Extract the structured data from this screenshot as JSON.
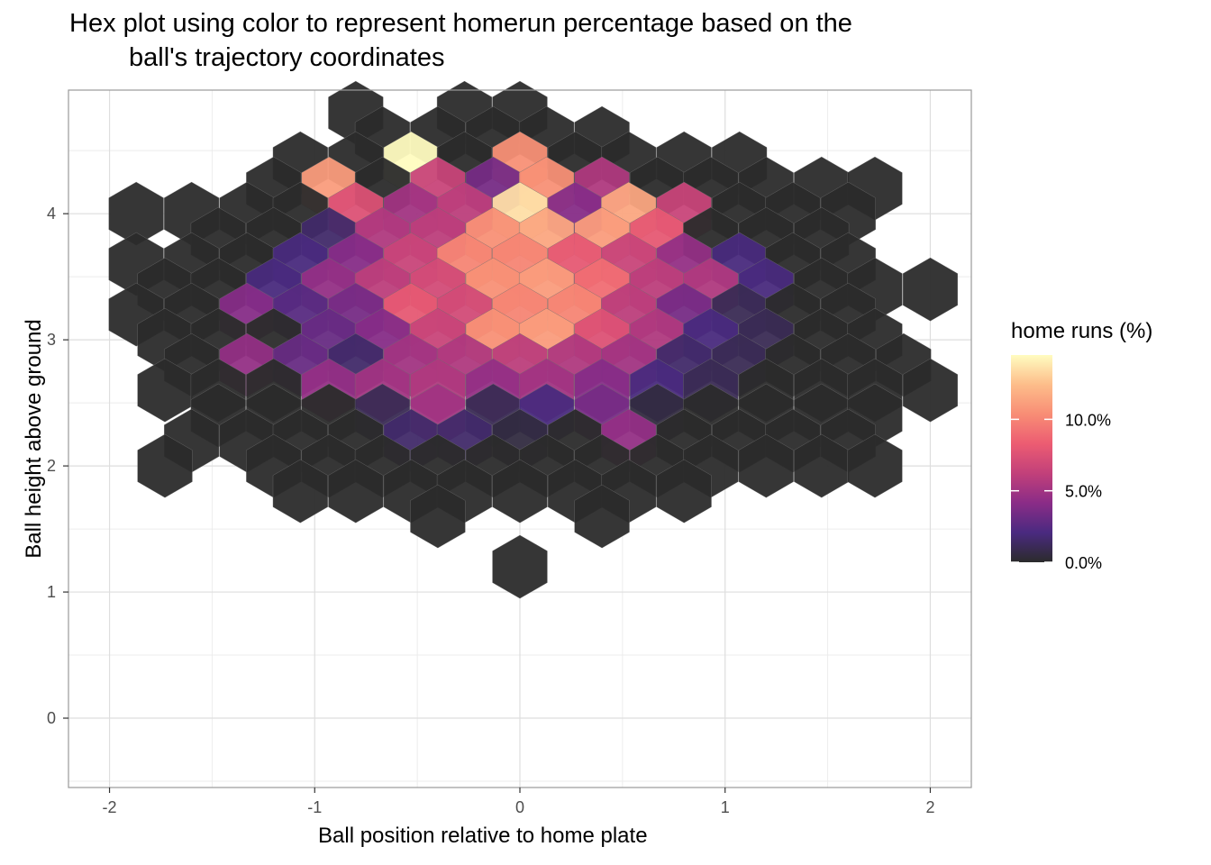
{
  "chart_data": {
    "type": "heatmap",
    "subtype": "hexbin",
    "title": "Hex plot using color to represent homerun percentage based on the",
    "title_line2": "ball's trajectory coordinates",
    "xlabel": "Ball position relative to home plate",
    "ylabel": "Ball height above ground",
    "xlim": [
      -2.2,
      2.2
    ],
    "ylim": [
      -0.55,
      4.98
    ],
    "xticks": [
      -2,
      -1,
      0,
      1,
      2
    ],
    "xtick_labels": [
      "-2",
      "-1",
      "0",
      "1",
      "2"
    ],
    "yticks": [
      0,
      1,
      2,
      3,
      4
    ],
    "ytick_labels": [
      "0",
      "1",
      "2",
      "3",
      "4"
    ],
    "grid": true,
    "hex_x_spacing": 0.2667,
    "hex_y_spacing": 0.2,
    "legend": {
      "title": "home runs (%)",
      "placement": "right",
      "ticks": [
        0,
        5,
        10
      ],
      "tick_labels": [
        "0.0%",
        "5.0%",
        "10.0%"
      ],
      "max": 14.5,
      "gradient": [
        "#2b2b2b",
        "#4a2a80",
        "#8a2c87",
        "#c2407a",
        "#ec5c72",
        "#f88d75",
        "#fdbd8a",
        "#fffcc0"
      ]
    },
    "cells": [
      {
        "x": -0.8,
        "y": 4.8,
        "v": 0
      },
      {
        "x": -0.27,
        "y": 4.8,
        "v": 0
      },
      {
        "x": 0,
        "y": 4.8,
        "v": 0
      },
      {
        "x": -0.67,
        "y": 4.6,
        "v": 0
      },
      {
        "x": -0.4,
        "y": 4.6,
        "v": 0
      },
      {
        "x": -0.13,
        "y": 4.6,
        "v": 0
      },
      {
        "x": 0.13,
        "y": 4.6,
        "v": 0
      },
      {
        "x": 0.4,
        "y": 4.6,
        "v": 0
      },
      {
        "x": -1.07,
        "y": 4.4,
        "v": 0
      },
      {
        "x": -0.8,
        "y": 4.4,
        "v": 0
      },
      {
        "x": -0.53,
        "y": 4.4,
        "v": 14.5
      },
      {
        "x": -0.27,
        "y": 4.4,
        "v": 0
      },
      {
        "x": 0,
        "y": 4.4,
        "v": 10.5
      },
      {
        "x": 0.27,
        "y": 4.4,
        "v": 0
      },
      {
        "x": 0.53,
        "y": 4.4,
        "v": 0
      },
      {
        "x": 0.8,
        "y": 4.4,
        "v": 0
      },
      {
        "x": 1.07,
        "y": 4.4,
        "v": 0
      },
      {
        "x": -1.2,
        "y": 4.2,
        "v": 0
      },
      {
        "x": -0.93,
        "y": 4.2,
        "v": 11
      },
      {
        "x": -0.67,
        "y": 4.2,
        "v": 0
      },
      {
        "x": -0.4,
        "y": 4.2,
        "v": 6.5
      },
      {
        "x": -0.13,
        "y": 4.2,
        "v": 3.5
      },
      {
        "x": 0.13,
        "y": 4.2,
        "v": 10.5
      },
      {
        "x": 0.4,
        "y": 4.2,
        "v": 5.5
      },
      {
        "x": 0.67,
        "y": 4.2,
        "v": 0
      },
      {
        "x": 0.93,
        "y": 4.2,
        "v": 0
      },
      {
        "x": 1.2,
        "y": 4.2,
        "v": 0
      },
      {
        "x": 1.47,
        "y": 4.2,
        "v": 0
      },
      {
        "x": 1.73,
        "y": 4.2,
        "v": 0
      },
      {
        "x": -1.87,
        "y": 4.0,
        "v": 0
      },
      {
        "x": -1.6,
        "y": 4.0,
        "v": 0
      },
      {
        "x": -1.33,
        "y": 4.0,
        "v": 0
      },
      {
        "x": -1.07,
        "y": 4.0,
        "v": 0
      },
      {
        "x": -0.8,
        "y": 4.0,
        "v": 7.5
      },
      {
        "x": -0.53,
        "y": 4.0,
        "v": 5
      },
      {
        "x": -0.27,
        "y": 4.0,
        "v": 6
      },
      {
        "x": 0,
        "y": 4.0,
        "v": 13.5
      },
      {
        "x": 0.27,
        "y": 4.0,
        "v": 4
      },
      {
        "x": 0.53,
        "y": 4.0,
        "v": 11.5
      },
      {
        "x": 0.8,
        "y": 4.0,
        "v": 6.5
      },
      {
        "x": 1.07,
        "y": 4.0,
        "v": 0
      },
      {
        "x": 1.33,
        "y": 4.0,
        "v": 0
      },
      {
        "x": 1.6,
        "y": 4.0,
        "v": 0
      },
      {
        "x": -1.47,
        "y": 3.8,
        "v": 0
      },
      {
        "x": -1.2,
        "y": 3.8,
        "v": 0
      },
      {
        "x": -0.93,
        "y": 3.8,
        "v": 1.5
      },
      {
        "x": -0.67,
        "y": 3.8,
        "v": 5.5
      },
      {
        "x": -0.4,
        "y": 3.8,
        "v": 6
      },
      {
        "x": -0.13,
        "y": 3.8,
        "v": 10.5
      },
      {
        "x": 0.13,
        "y": 3.8,
        "v": 11.5
      },
      {
        "x": 0.4,
        "y": 3.8,
        "v": 11
      },
      {
        "x": 0.67,
        "y": 3.8,
        "v": 8
      },
      {
        "x": 0.93,
        "y": 3.8,
        "v": 0
      },
      {
        "x": 1.2,
        "y": 3.8,
        "v": 0
      },
      {
        "x": 1.47,
        "y": 3.8,
        "v": 0
      },
      {
        "x": -1.87,
        "y": 3.6,
        "v": 0
      },
      {
        "x": -1.6,
        "y": 3.6,
        "v": 0
      },
      {
        "x": -1.33,
        "y": 3.6,
        "v": 0
      },
      {
        "x": -1.07,
        "y": 3.6,
        "v": 2
      },
      {
        "x": -0.8,
        "y": 3.6,
        "v": 4
      },
      {
        "x": -0.53,
        "y": 3.6,
        "v": 6.5
      },
      {
        "x": -0.27,
        "y": 3.6,
        "v": 10
      },
      {
        "x": 0,
        "y": 3.6,
        "v": 10
      },
      {
        "x": 0.27,
        "y": 3.6,
        "v": 8
      },
      {
        "x": 0.53,
        "y": 3.6,
        "v": 6.5
      },
      {
        "x": 0.8,
        "y": 3.6,
        "v": 4.5
      },
      {
        "x": 1.07,
        "y": 3.6,
        "v": 2
      },
      {
        "x": 1.33,
        "y": 3.6,
        "v": 0
      },
      {
        "x": 1.6,
        "y": 3.6,
        "v": 0
      },
      {
        "x": -1.73,
        "y": 3.4,
        "v": 0
      },
      {
        "x": -1.47,
        "y": 3.4,
        "v": 0
      },
      {
        "x": -1.2,
        "y": 3.4,
        "v": 2
      },
      {
        "x": -0.93,
        "y": 3.4,
        "v": 4.5
      },
      {
        "x": -0.67,
        "y": 3.4,
        "v": 6
      },
      {
        "x": -0.4,
        "y": 3.4,
        "v": 7
      },
      {
        "x": -0.13,
        "y": 3.4,
        "v": 10.5
      },
      {
        "x": 0.13,
        "y": 3.4,
        "v": 11
      },
      {
        "x": 0.4,
        "y": 3.4,
        "v": 9
      },
      {
        "x": 0.67,
        "y": 3.4,
        "v": 6
      },
      {
        "x": 0.93,
        "y": 3.4,
        "v": 5.5
      },
      {
        "x": 1.2,
        "y": 3.4,
        "v": 2
      },
      {
        "x": 1.47,
        "y": 3.4,
        "v": 0
      },
      {
        "x": 1.73,
        "y": 3.4,
        "v": 0
      },
      {
        "x": 2.0,
        "y": 3.4,
        "v": 0
      },
      {
        "x": -1.87,
        "y": 3.2,
        "v": 0
      },
      {
        "x": -1.6,
        "y": 3.2,
        "v": 0
      },
      {
        "x": -1.33,
        "y": 3.2,
        "v": 4
      },
      {
        "x": -1.07,
        "y": 3.2,
        "v": 2.5
      },
      {
        "x": -0.8,
        "y": 3.2,
        "v": 3.5
      },
      {
        "x": -0.53,
        "y": 3.2,
        "v": 8
      },
      {
        "x": -0.27,
        "y": 3.2,
        "v": 7
      },
      {
        "x": 0,
        "y": 3.2,
        "v": 10
      },
      {
        "x": 0.27,
        "y": 3.2,
        "v": 10
      },
      {
        "x": 0.53,
        "y": 3.2,
        "v": 6
      },
      {
        "x": 0.8,
        "y": 3.2,
        "v": 3.5
      },
      {
        "x": 1.07,
        "y": 3.2,
        "v": 1
      },
      {
        "x": 1.33,
        "y": 3.2,
        "v": 0
      },
      {
        "x": 1.6,
        "y": 3.2,
        "v": 0
      },
      {
        "x": -1.73,
        "y": 3.0,
        "v": 0
      },
      {
        "x": -1.47,
        "y": 3.0,
        "v": 0
      },
      {
        "x": -1.2,
        "y": 3.0,
        "v": 0
      },
      {
        "x": -0.93,
        "y": 3.0,
        "v": 3
      },
      {
        "x": -0.67,
        "y": 3.0,
        "v": 4
      },
      {
        "x": -0.4,
        "y": 3.0,
        "v": 6.5
      },
      {
        "x": -0.13,
        "y": 3.0,
        "v": 10.5
      },
      {
        "x": 0.13,
        "y": 3.0,
        "v": 11
      },
      {
        "x": 0.4,
        "y": 3.0,
        "v": 7.5
      },
      {
        "x": 0.67,
        "y": 3.0,
        "v": 5.5
      },
      {
        "x": 0.93,
        "y": 3.0,
        "v": 2
      },
      {
        "x": 1.2,
        "y": 3.0,
        "v": 1
      },
      {
        "x": 1.47,
        "y": 3.0,
        "v": 0
      },
      {
        "x": 1.73,
        "y": 3.0,
        "v": 0
      },
      {
        "x": -1.6,
        "y": 2.8,
        "v": 0
      },
      {
        "x": -1.33,
        "y": 2.8,
        "v": 4.5
      },
      {
        "x": -1.07,
        "y": 2.8,
        "v": 3
      },
      {
        "x": -0.8,
        "y": 2.8,
        "v": 1.5
      },
      {
        "x": -0.53,
        "y": 2.8,
        "v": 5
      },
      {
        "x": -0.27,
        "y": 2.8,
        "v": 5.5
      },
      {
        "x": 0,
        "y": 2.8,
        "v": 6
      },
      {
        "x": 0.27,
        "y": 2.8,
        "v": 5.5
      },
      {
        "x": 0.53,
        "y": 2.8,
        "v": 5
      },
      {
        "x": 0.8,
        "y": 2.8,
        "v": 1.5
      },
      {
        "x": 1.07,
        "y": 2.8,
        "v": 1
      },
      {
        "x": 1.33,
        "y": 2.8,
        "v": 0
      },
      {
        "x": 1.6,
        "y": 2.8,
        "v": 0
      },
      {
        "x": 1.87,
        "y": 2.8,
        "v": 0
      },
      {
        "x": -1.73,
        "y": 2.6,
        "v": 0
      },
      {
        "x": -1.47,
        "y": 2.6,
        "v": 0
      },
      {
        "x": -1.2,
        "y": 2.6,
        "v": 0
      },
      {
        "x": -0.93,
        "y": 2.6,
        "v": 4.5
      },
      {
        "x": -0.67,
        "y": 2.6,
        "v": 5
      },
      {
        "x": -0.4,
        "y": 2.6,
        "v": 5.5
      },
      {
        "x": -0.13,
        "y": 2.6,
        "v": 4.5
      },
      {
        "x": 0.13,
        "y": 2.6,
        "v": 5
      },
      {
        "x": 0.4,
        "y": 2.6,
        "v": 4
      },
      {
        "x": 0.67,
        "y": 2.6,
        "v": 2
      },
      {
        "x": 0.93,
        "y": 2.6,
        "v": 1
      },
      {
        "x": 1.2,
        "y": 2.6,
        "v": 0
      },
      {
        "x": 1.47,
        "y": 2.6,
        "v": 0
      },
      {
        "x": 1.73,
        "y": 2.6,
        "v": 0
      },
      {
        "x": 2.0,
        "y": 2.6,
        "v": 0
      },
      {
        "x": -1.47,
        "y": 2.4,
        "v": 0
      },
      {
        "x": -1.2,
        "y": 2.4,
        "v": 0
      },
      {
        "x": -0.93,
        "y": 2.4,
        "v": 0
      },
      {
        "x": -0.67,
        "y": 2.4,
        "v": 1
      },
      {
        "x": -0.4,
        "y": 2.4,
        "v": 5
      },
      {
        "x": -0.13,
        "y": 2.4,
        "v": 1
      },
      {
        "x": 0.13,
        "y": 2.4,
        "v": 2
      },
      {
        "x": 0.4,
        "y": 2.4,
        "v": 3.5
      },
      {
        "x": 0.67,
        "y": 2.4,
        "v": 0.5
      },
      {
        "x": 0.93,
        "y": 2.4,
        "v": 0
      },
      {
        "x": 1.2,
        "y": 2.4,
        "v": 0
      },
      {
        "x": 1.47,
        "y": 2.4,
        "v": 0
      },
      {
        "x": 1.73,
        "y": 2.4,
        "v": 0
      },
      {
        "x": -1.6,
        "y": 2.2,
        "v": 0
      },
      {
        "x": -1.33,
        "y": 2.2,
        "v": 0
      },
      {
        "x": -1.07,
        "y": 2.2,
        "v": 0
      },
      {
        "x": -0.8,
        "y": 2.2,
        "v": 0
      },
      {
        "x": -0.53,
        "y": 2.2,
        "v": 1.5
      },
      {
        "x": -0.27,
        "y": 2.2,
        "v": 1.5
      },
      {
        "x": 0,
        "y": 2.2,
        "v": 0.5
      },
      {
        "x": 0.27,
        "y": 2.2,
        "v": 0
      },
      {
        "x": 0.53,
        "y": 2.2,
        "v": 4.5
      },
      {
        "x": 0.8,
        "y": 2.2,
        "v": 0
      },
      {
        "x": 1.07,
        "y": 2.2,
        "v": 0
      },
      {
        "x": 1.33,
        "y": 2.2,
        "v": 0
      },
      {
        "x": 1.6,
        "y": 2.2,
        "v": 0
      },
      {
        "x": -1.73,
        "y": 2.0,
        "v": 0
      },
      {
        "x": -1.2,
        "y": 2.0,
        "v": 0
      },
      {
        "x": -0.93,
        "y": 2.0,
        "v": 0
      },
      {
        "x": -0.67,
        "y": 2.0,
        "v": 0
      },
      {
        "x": -0.4,
        "y": 2.0,
        "v": 0
      },
      {
        "x": -0.13,
        "y": 2.0,
        "v": 0
      },
      {
        "x": 0.13,
        "y": 2.0,
        "v": 0
      },
      {
        "x": 0.4,
        "y": 2.0,
        "v": 0
      },
      {
        "x": 0.67,
        "y": 2.0,
        "v": 0
      },
      {
        "x": 0.93,
        "y": 2.0,
        "v": 0
      },
      {
        "x": 1.2,
        "y": 2.0,
        "v": 0
      },
      {
        "x": 1.47,
        "y": 2.0,
        "v": 0
      },
      {
        "x": 1.73,
        "y": 2.0,
        "v": 0
      },
      {
        "x": -1.07,
        "y": 1.8,
        "v": 0
      },
      {
        "x": -0.8,
        "y": 1.8,
        "v": 0
      },
      {
        "x": -0.53,
        "y": 1.8,
        "v": 0
      },
      {
        "x": -0.27,
        "y": 1.8,
        "v": 0
      },
      {
        "x": 0,
        "y": 1.8,
        "v": 0
      },
      {
        "x": 0.27,
        "y": 1.8,
        "v": 0
      },
      {
        "x": 0.53,
        "y": 1.8,
        "v": 0
      },
      {
        "x": 0.8,
        "y": 1.8,
        "v": 0
      },
      {
        "x": -0.4,
        "y": 1.6,
        "v": 0
      },
      {
        "x": 0.4,
        "y": 1.6,
        "v": 0
      },
      {
        "x": 0,
        "y": 1.2,
        "v": 0
      }
    ]
  }
}
